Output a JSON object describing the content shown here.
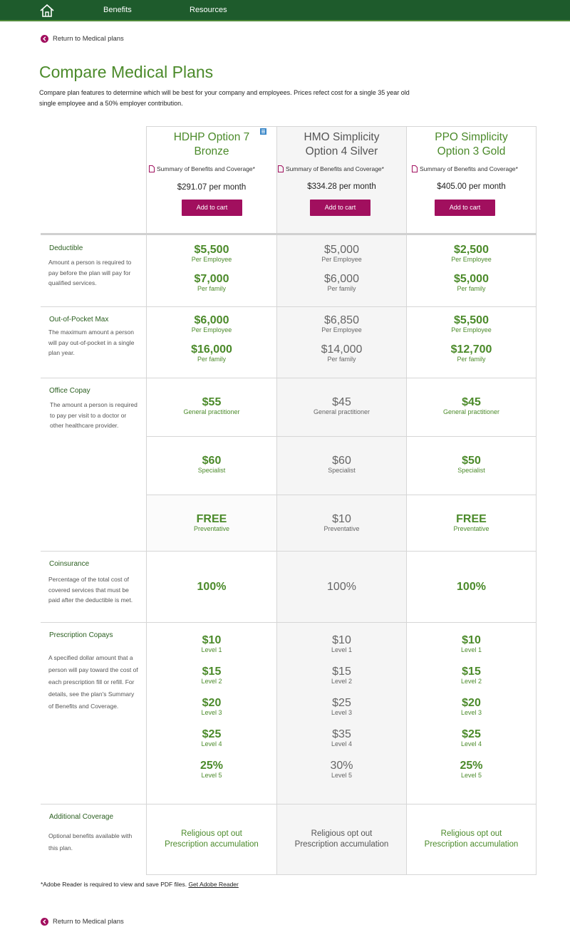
{
  "nav": {
    "items": [
      "Benefits",
      "Resources"
    ]
  },
  "back_link": "Return to Medical plans",
  "title": "Compare Medical Plans",
  "intro": "Compare plan features to determine which will be best for your company and employees. Prices refect cost for a single 35 year old single employee and a 50% employer contribution.",
  "sbc_label": "Summary of Benefits and Coverage*",
  "cart_label": "Add to cart",
  "plans": [
    {
      "name_line1": "HDHP Option 7",
      "name_line2": "Bronze",
      "price": "$291.07 per month"
    },
    {
      "name_line1": "HMO Simplicity",
      "name_line2": "Option 4 Silver",
      "price": "$334.28 per month"
    },
    {
      "name_line1": "PPO Simplicity",
      "name_line2": "Option 3 Gold",
      "price": "$405.00 per month"
    }
  ],
  "rows": {
    "deductible": {
      "title": "Deductible",
      "desc": "Amount a person is required to pay before the plan will pay for qualified services.",
      "values": [
        [
          [
            "$5,500",
            "Per Employee"
          ],
          [
            "$7,000",
            "Per family"
          ]
        ],
        [
          [
            "$5,000",
            "Per Employee"
          ],
          [
            "$6,000",
            "Per family"
          ]
        ],
        [
          [
            "$2,500",
            "Per Employee"
          ],
          [
            "$5,000",
            "Per family"
          ]
        ]
      ]
    },
    "oop": {
      "title": "Out-of-Pocket Max",
      "desc": "The maximum amount a person will pay out-of-pocket in a single plan year.",
      "values": [
        [
          [
            "$6,000",
            "Per Employee"
          ],
          [
            "$16,000",
            "Per family"
          ]
        ],
        [
          [
            "$6,850",
            "Per Employee"
          ],
          [
            "$14,000",
            "Per family"
          ]
        ],
        [
          [
            "$5,500",
            "Per Employee"
          ],
          [
            "$12,700",
            "Per family"
          ]
        ]
      ]
    },
    "copay": {
      "title": "Office Copay",
      "desc": "The amount a person is required to pay per visit to a doctor or other healthcare provider.",
      "values": [
        [
          [
            "$55",
            "General practitioner"
          ],
          [
            "$60",
            "Specialist"
          ],
          [
            "FREE",
            "Preventative"
          ]
        ],
        [
          [
            "$45",
            "General practitioner"
          ],
          [
            "$60",
            "Specialist"
          ],
          [
            "$10",
            "Preventative"
          ]
        ],
        [
          [
            "$45",
            "General practitioner"
          ],
          [
            "$50",
            "Specialist"
          ],
          [
            "FREE",
            "Preventative"
          ]
        ]
      ]
    },
    "coinsurance": {
      "title": "Coinsurance",
      "desc": "Percentage of the total cost of covered services that must be paid after the deductible is met.",
      "values": [
        "100%",
        "100%",
        "100%"
      ]
    },
    "rx": {
      "title": "Prescription Copays",
      "desc": "A specified dollar amount that a person will pay toward the cost of each prescription fill or refill. For details, see the plan's Summary of Benefits and Coverage.",
      "values": [
        [
          [
            "$10",
            "Level 1"
          ],
          [
            "$15",
            "Level 2"
          ],
          [
            "$20",
            "Level 3"
          ],
          [
            "$25",
            "Level 4"
          ],
          [
            "25%",
            "Level 5"
          ]
        ],
        [
          [
            "$10",
            "Level 1"
          ],
          [
            "$15",
            "Level 2"
          ],
          [
            "$25",
            "Level 3"
          ],
          [
            "$35",
            "Level 4"
          ],
          [
            "30%",
            "Level 5"
          ]
        ],
        [
          [
            "$10",
            "Level 1"
          ],
          [
            "$15",
            "Level 2"
          ],
          [
            "$20",
            "Level 3"
          ],
          [
            "$25",
            "Level 4"
          ],
          [
            "25%",
            "Level 5"
          ]
        ]
      ]
    },
    "additional": {
      "title": "Additional Coverage",
      "desc": "Optional benefits available with this plan.",
      "values": [
        [
          "Religious opt out",
          "Prescription accumulation"
        ],
        [
          "Religious opt out",
          "Prescription accumulation"
        ],
        [
          "Religious opt out",
          "Prescription accumulation"
        ]
      ]
    }
  },
  "footnote": "*Adobe Reader is required to view and save PDF files.",
  "footnote_link": "Get Adobe Reader",
  "colors": {
    "header_bg": "#1e5b2c",
    "accent_green": "#4b8a2a",
    "button": "#a10f5e"
  }
}
